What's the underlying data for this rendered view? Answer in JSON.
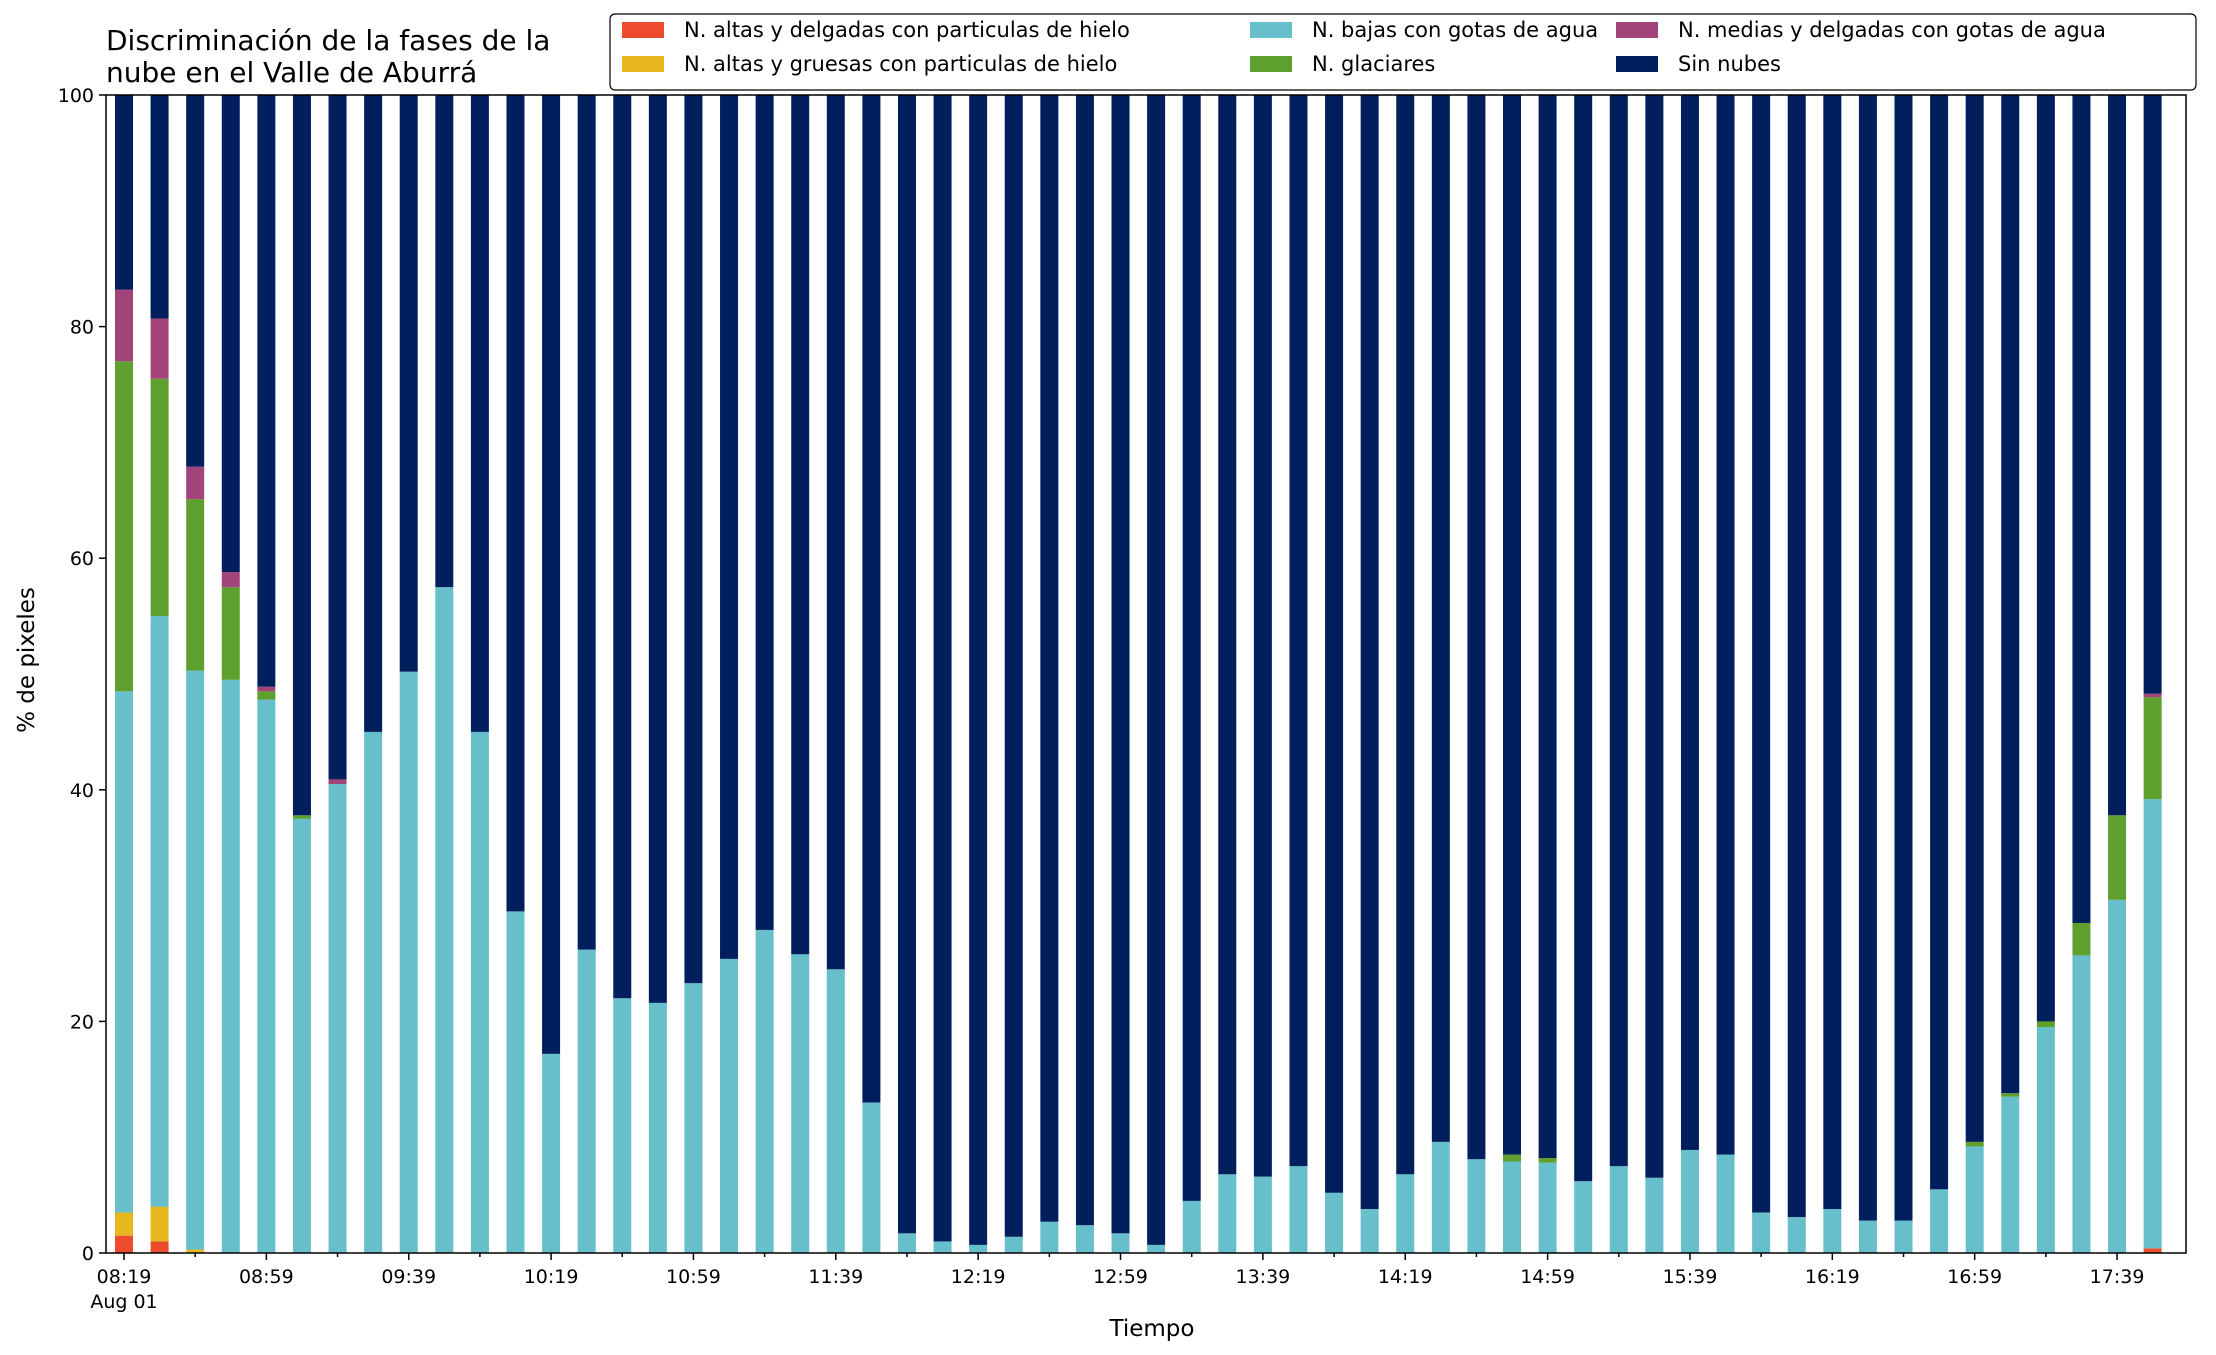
{
  "chart_data": {
    "type": "bar",
    "stacked": true,
    "title_lines": [
      "Discriminación de la fases de la",
      "nube en el Valle de Aburrá"
    ],
    "xlabel": "Tiempo",
    "ylabel": "% de pixeles",
    "ylim": [
      0,
      100
    ],
    "yticks": [
      0,
      20,
      40,
      60,
      80,
      100
    ],
    "grid": false,
    "legend_position": "top-right",
    "start_time": "08:19",
    "interval_minutes": 10,
    "xtick_labels": [
      "08:19",
      "08:59",
      "09:39",
      "10:19",
      "10:59",
      "11:39",
      "12:19",
      "12:59",
      "13:39",
      "14:19",
      "14:59",
      "15:39",
      "16:19",
      "16:59",
      "17:39"
    ],
    "xtick_sublabel": "Aug 01",
    "series": [
      {
        "name": "N. altas y delgadas con particulas de hielo",
        "color": "#ec4c2b",
        "values": [
          1.5,
          1.0,
          0,
          0,
          0,
          0,
          0,
          0,
          0,
          0,
          0,
          0,
          0,
          0,
          0,
          0,
          0,
          0,
          0,
          0,
          0,
          0,
          0,
          0,
          0,
          0,
          0,
          0,
          0,
          0,
          0,
          0,
          0,
          0,
          0,
          0,
          0,
          0,
          0,
          0,
          0,
          0,
          0,
          0,
          0,
          0,
          0,
          0,
          0,
          0,
          0,
          0,
          0,
          0,
          0,
          0,
          0,
          0.4
        ]
      },
      {
        "name": "N. altas y gruesas con particulas de hielo",
        "color": "#e6b81d",
        "values": [
          2.0,
          3.0,
          0.3,
          0,
          0,
          0,
          0,
          0,
          0,
          0,
          0,
          0,
          0,
          0,
          0,
          0,
          0,
          0,
          0,
          0,
          0,
          0,
          0,
          0,
          0,
          0,
          0,
          0,
          0,
          0,
          0,
          0,
          0,
          0,
          0,
          0,
          0,
          0,
          0,
          0,
          0,
          0,
          0,
          0,
          0,
          0,
          0,
          0,
          0,
          0,
          0,
          0,
          0,
          0,
          0,
          0,
          0,
          0
        ]
      },
      {
        "name": "N. bajas con gotas de agua",
        "color": "#66bfcb",
        "values": [
          45.0,
          51.0,
          50.0,
          49.5,
          47.8,
          37.5,
          40.5,
          45.0,
          50.2,
          57.5,
          45.0,
          29.5,
          17.2,
          26.2,
          22.0,
          21.6,
          23.3,
          25.4,
          27.9,
          25.8,
          24.5,
          13.0,
          1.7,
          1.0,
          0.7,
          1.4,
          2.7,
          2.4,
          1.7,
          0.7,
          4.5,
          6.8,
          6.6,
          7.5,
          5.2,
          3.8,
          6.8,
          9.6,
          8.1,
          7.9,
          7.8,
          6.2,
          7.5,
          6.5,
          8.9,
          8.5,
          3.5,
          3.1,
          3.8,
          2.8,
          2.8,
          5.5,
          9.2,
          13.5,
          19.5,
          25.7,
          30.5,
          38.8
        ]
      },
      {
        "name": "N. glaciares",
        "color": "#5e9f2d",
        "values": [
          28.5,
          20.5,
          14.8,
          8.0,
          0.7,
          0.3,
          0,
          0,
          0,
          0,
          0,
          0,
          0,
          0,
          0,
          0,
          0,
          0,
          0,
          0,
          0,
          0,
          0,
          0,
          0,
          0,
          0,
          0,
          0,
          0,
          0,
          0,
          0,
          0,
          0,
          0,
          0,
          0,
          0,
          0.6,
          0.4,
          0,
          0,
          0,
          0,
          0,
          0,
          0,
          0,
          0,
          0,
          0,
          0.4,
          0.3,
          0.5,
          2.8,
          7.3,
          8.8
        ]
      },
      {
        "name": "N. medias y delgadas con gotas de agua",
        "color": "#a24479",
        "values": [
          6.2,
          5.2,
          2.8,
          1.3,
          0.4,
          0,
          0.4,
          0,
          0,
          0,
          0,
          0,
          0,
          0,
          0,
          0,
          0,
          0,
          0,
          0,
          0,
          0,
          0,
          0,
          0,
          0,
          0,
          0,
          0,
          0,
          0,
          0,
          0,
          0,
          0,
          0,
          0,
          0,
          0,
          0,
          0,
          0,
          0,
          0,
          0,
          0,
          0,
          0,
          0,
          0,
          0,
          0,
          0,
          0,
          0,
          0,
          0,
          0.3
        ]
      },
      {
        "name": "Sin nubes",
        "color": "#001f5c",
        "fill_to_top": true
      }
    ]
  }
}
